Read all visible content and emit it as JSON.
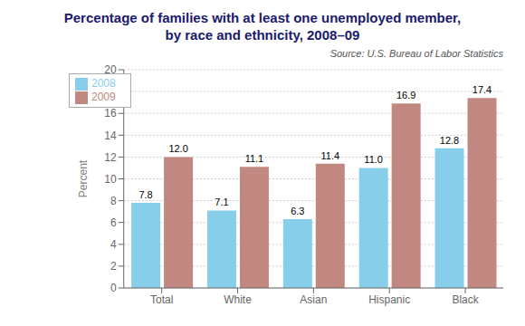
{
  "chart_data": {
    "type": "bar",
    "title": "Percentage of families with at least one unemployed member,\nby race and ethnicity, 2008–09",
    "categories": [
      "Total",
      "White",
      "Asian",
      "Hispanic",
      "Black"
    ],
    "series": [
      {
        "name": "2008",
        "color": "#87CEEB",
        "values": [
          7.8,
          7.1,
          6.3,
          11.0,
          12.8
        ],
        "value_labels": [
          "7.8",
          "7.1",
          "6.3",
          "11.0",
          "12.8"
        ]
      },
      {
        "name": "2009",
        "color": "#C08880",
        "values": [
          12.0,
          11.1,
          11.4,
          16.9,
          17.4
        ],
        "value_labels": [
          "12.0",
          "11.1",
          "11.4",
          "16.9",
          "17.4"
        ]
      }
    ],
    "ylabel": "Percent",
    "ylim": [
      0,
      20
    ],
    "yticks": [
      0,
      2,
      4,
      6,
      8,
      10,
      12,
      14,
      16,
      18,
      20
    ],
    "grid": true,
    "legend": "upper left",
    "data_labels": true,
    "annotations": [
      "Source: U.S. Bureau of Labor Statistics"
    ]
  }
}
